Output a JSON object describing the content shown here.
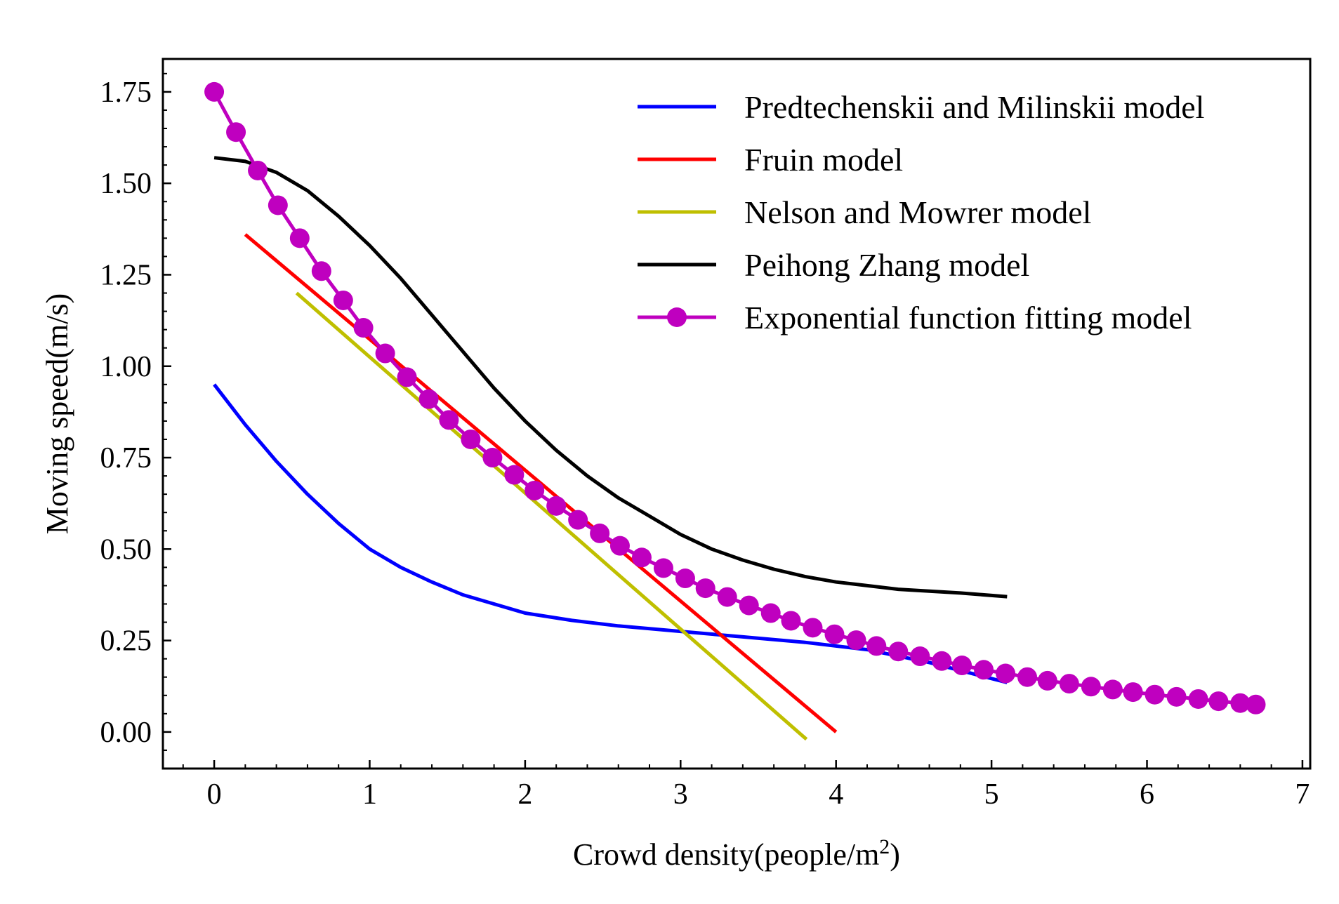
{
  "chart_data": {
    "type": "line",
    "title": "",
    "xlabel": "Crowd density(people/m",
    "xlabel_superscript": "2",
    "xlabel_close": ")",
    "ylabel": "Moving speed(m/s)",
    "xlim": [
      -0.33,
      7.05
    ],
    "ylim": [
      -0.1,
      1.84
    ],
    "x_ticks": [
      0,
      1,
      2,
      3,
      4,
      5,
      6,
      7
    ],
    "x_tick_labels": [
      "0",
      "1",
      "2",
      "3",
      "4",
      "5",
      "6",
      "7"
    ],
    "y_ticks": [
      0.0,
      0.25,
      0.5,
      0.75,
      1.0,
      1.25,
      1.5,
      1.75
    ],
    "y_tick_labels": [
      "0.00",
      "0.25",
      "0.50",
      "0.75",
      "1.00",
      "1.25",
      "1.50",
      "1.75"
    ],
    "legend_position": "top-right",
    "series": [
      {
        "name": "Predtechenskii and Milinskii model",
        "color": "#0000ff",
        "marker": "none",
        "x": [
          0.0,
          0.2,
          0.4,
          0.6,
          0.8,
          1.0,
          1.2,
          1.4,
          1.6,
          1.8,
          2.0,
          2.3,
          2.6,
          3.0,
          3.4,
          3.8,
          4.2,
          4.6,
          5.1
        ],
        "y": [
          0.95,
          0.84,
          0.74,
          0.65,
          0.57,
          0.5,
          0.45,
          0.41,
          0.375,
          0.35,
          0.325,
          0.305,
          0.29,
          0.275,
          0.26,
          0.245,
          0.225,
          0.19,
          0.135
        ]
      },
      {
        "name": "Fruin model",
        "color": "#ff0000",
        "marker": "none",
        "x": [
          0.2,
          4.0
        ],
        "y": [
          1.36,
          0.0
        ]
      },
      {
        "name": "Nelson and Mowrer model",
        "color": "#bfbf00",
        "marker": "none",
        "x": [
          0.53,
          3.81
        ],
        "y": [
          1.2,
          -0.02
        ]
      },
      {
        "name": "Peihong Zhang model",
        "color": "#000000",
        "marker": "none",
        "x": [
          0.0,
          0.2,
          0.4,
          0.6,
          0.8,
          1.0,
          1.2,
          1.4,
          1.6,
          1.8,
          2.0,
          2.2,
          2.4,
          2.6,
          2.8,
          3.0,
          3.2,
          3.4,
          3.6,
          3.8,
          4.0,
          4.2,
          4.4,
          4.6,
          4.8,
          5.1
        ],
        "y": [
          1.57,
          1.56,
          1.53,
          1.48,
          1.41,
          1.33,
          1.24,
          1.14,
          1.04,
          0.94,
          0.85,
          0.77,
          0.7,
          0.64,
          0.59,
          0.54,
          0.5,
          0.47,
          0.445,
          0.425,
          0.41,
          0.4,
          0.39,
          0.385,
          0.38,
          0.37
        ]
      },
      {
        "name": "Exponential function fitting model",
        "color": "#bf00bf",
        "marker": "circle",
        "x": [
          0.0,
          0.14,
          0.28,
          0.41,
          0.55,
          0.69,
          0.83,
          0.96,
          1.1,
          1.24,
          1.38,
          1.51,
          1.65,
          1.79,
          1.93,
          2.06,
          2.2,
          2.34,
          2.48,
          2.61,
          2.75,
          2.89,
          3.03,
          3.16,
          3.3,
          3.44,
          3.58,
          3.71,
          3.85,
          3.99,
          4.13,
          4.26,
          4.4,
          4.54,
          4.68,
          4.81,
          4.95,
          5.09,
          5.23,
          5.36,
          5.5,
          5.64,
          5.78,
          5.91,
          6.05,
          6.19,
          6.33,
          6.46,
          6.6,
          6.7
        ],
        "y": [
          1.75,
          1.64,
          1.535,
          1.44,
          1.35,
          1.26,
          1.18,
          1.105,
          1.035,
          0.97,
          0.91,
          0.853,
          0.8,
          0.75,
          0.703,
          0.66,
          0.618,
          0.58,
          0.543,
          0.509,
          0.477,
          0.448,
          0.42,
          0.393,
          0.369,
          0.346,
          0.325,
          0.304,
          0.285,
          0.267,
          0.251,
          0.235,
          0.22,
          0.207,
          0.194,
          0.182,
          0.17,
          0.16,
          0.15,
          0.14,
          0.132,
          0.124,
          0.116,
          0.109,
          0.102,
          0.096,
          0.09,
          0.084,
          0.079,
          0.075
        ]
      }
    ]
  }
}
